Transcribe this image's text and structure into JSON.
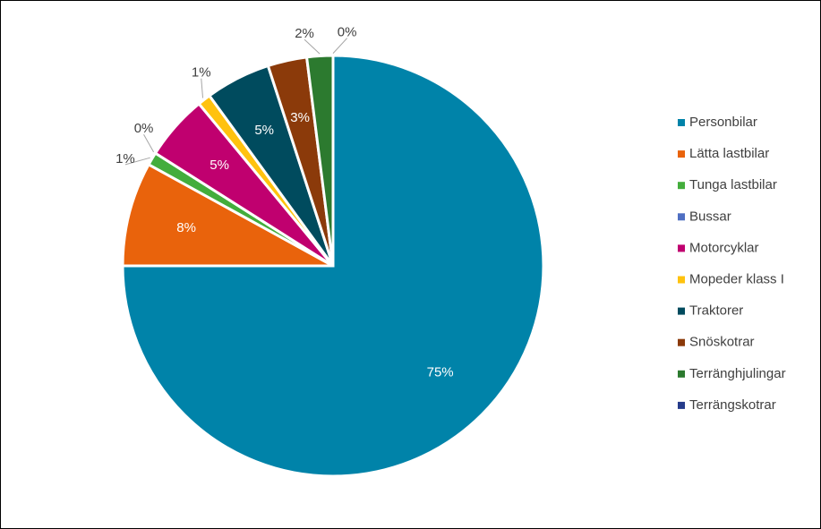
{
  "chart_data": {
    "type": "pie",
    "categories": [
      "Personbilar",
      "Lätta lastbilar",
      "Tunga lastbilar",
      "Bussar",
      "Motorcyklar",
      "Mopeder klass I",
      "Traktorer",
      "Snöskotrar",
      "Terränghjulingar",
      "Terrängskotrar"
    ],
    "values": [
      75,
      8,
      1,
      0,
      5,
      1,
      5,
      3,
      2,
      0
    ],
    "value_labels": [
      "75%",
      "8%",
      "1%",
      "0%",
      "5%",
      "1%",
      "5%",
      "3%",
      "2%",
      "0%"
    ],
    "colors": [
      "#0083a9",
      "#e9630c",
      "#43ad3c",
      "#4f6fc2",
      "#c0006f",
      "#ffc20e",
      "#004b5e",
      "#8b3a0a",
      "#2c7a2f",
      "#253b8a"
    ],
    "legend": "right"
  }
}
